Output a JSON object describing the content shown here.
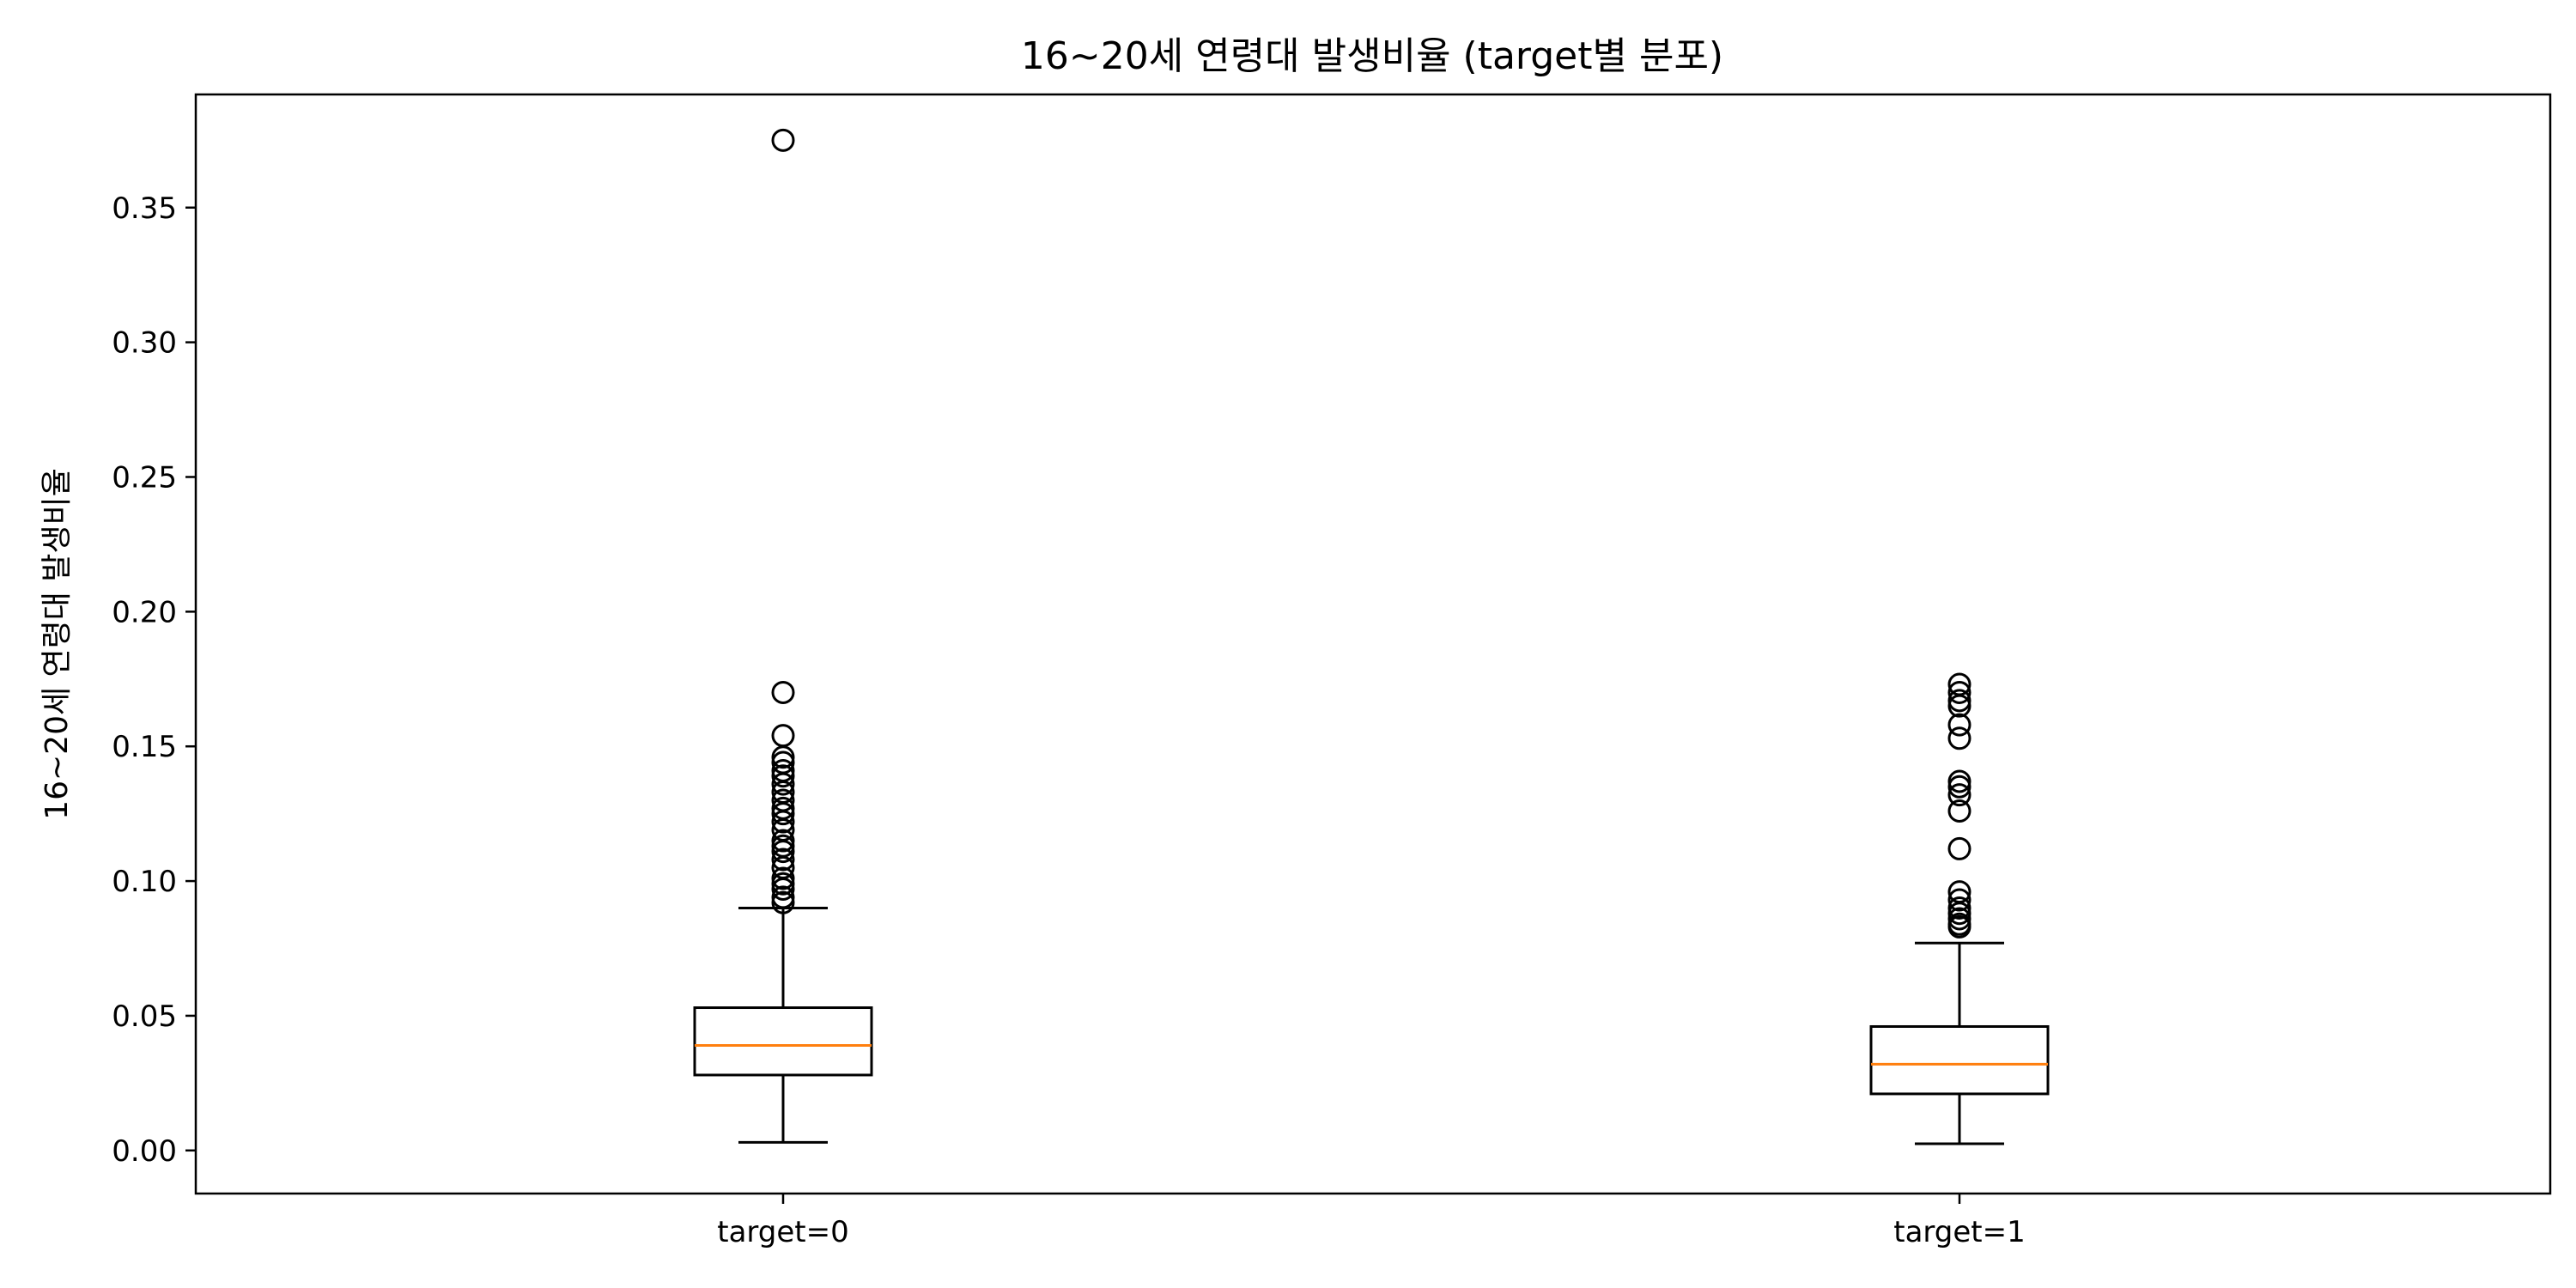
{
  "chart_data": {
    "type": "box",
    "title": "16~20세 연령대 발생비율 (target별 분포)",
    "xlabel": "",
    "ylabel": "16~20세 연령대 발생비율",
    "categories": [
      "target=0",
      "target=1"
    ],
    "ylim": [
      -0.016,
      0.392
    ],
    "yticks": [
      0.0,
      0.05,
      0.1,
      0.15,
      0.2,
      0.25,
      0.3,
      0.35
    ],
    "ytick_labels": [
      "0.00",
      "0.05",
      "0.10",
      "0.15",
      "0.20",
      "0.25",
      "0.30",
      "0.35"
    ],
    "grid": false,
    "legend": "none",
    "boxes": [
      {
        "name": "target=0",
        "whisker_low": 0.003,
        "q1": 0.028,
        "median": 0.039,
        "q3": 0.053,
        "whisker_high": 0.09,
        "outliers": [
          0.092,
          0.094,
          0.097,
          0.099,
          0.101,
          0.105,
          0.108,
          0.111,
          0.113,
          0.115,
          0.119,
          0.122,
          0.125,
          0.127,
          0.13,
          0.133,
          0.136,
          0.139,
          0.141,
          0.144,
          0.146,
          0.154,
          0.17,
          0.375
        ]
      },
      {
        "name": "target=1",
        "whisker_low": 0.0025,
        "q1": 0.021,
        "median": 0.032,
        "q3": 0.046,
        "whisker_high": 0.077,
        "outliers": [
          0.083,
          0.084,
          0.086,
          0.088,
          0.09,
          0.093,
          0.096,
          0.112,
          0.126,
          0.132,
          0.135,
          0.137,
          0.153,
          0.158,
          0.165,
          0.167,
          0.17,
          0.173
        ]
      }
    ],
    "colors": {
      "box": "#000000",
      "median": "#ff7f0e",
      "outlier_edge": "#000000"
    }
  }
}
